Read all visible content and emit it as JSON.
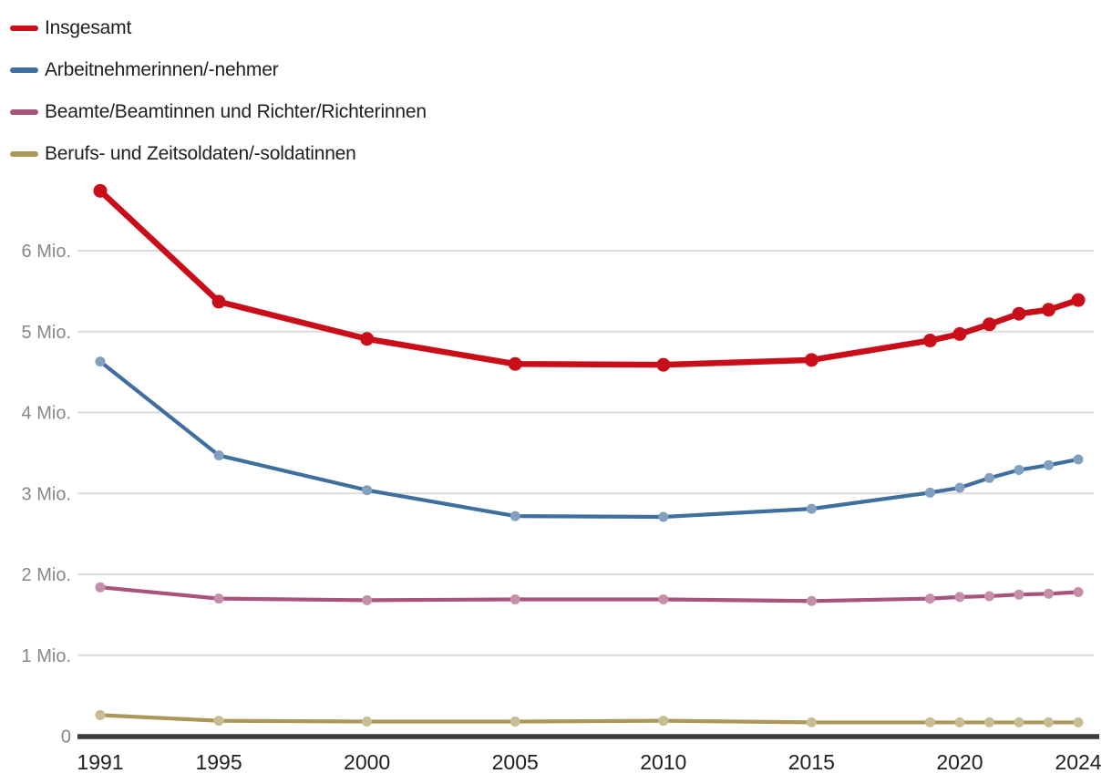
{
  "chart_data": {
    "type": "line",
    "x": [
      1991,
      1995,
      2000,
      2005,
      2010,
      2015,
      2019,
      2020,
      2021,
      2022,
      2023,
      2024
    ],
    "series": [
      {
        "name": "Insgesamt",
        "color": "#c90e1a",
        "emphasized": true,
        "values": [
          6.74,
          5.37,
          4.91,
          4.6,
          4.59,
          4.65,
          4.89,
          4.97,
          5.09,
          5.22,
          5.27,
          5.39
        ]
      },
      {
        "name": "Arbeitnehmerinnen/-nehmer",
        "color": "#3e6f9e",
        "emphasized": false,
        "values": [
          4.63,
          3.47,
          3.04,
          2.72,
          2.71,
          2.81,
          3.01,
          3.07,
          3.19,
          3.29,
          3.35,
          3.42
        ]
      },
      {
        "name": "Beamte/Beamtinnen und Richter/Richterinnen",
        "color": "#a8537a",
        "emphasized": false,
        "values": [
          1.84,
          1.7,
          1.68,
          1.69,
          1.69,
          1.67,
          1.7,
          1.72,
          1.73,
          1.75,
          1.76,
          1.78
        ]
      },
      {
        "name": "Berufs- und Zeitsoldaten/-soldatinnen",
        "color": "#ab9859",
        "emphasized": false,
        "values": [
          0.26,
          0.19,
          0.18,
          0.18,
          0.19,
          0.17,
          0.17,
          0.17,
          0.17,
          0.17,
          0.17,
          0.17
        ]
      }
    ],
    "y_ticks": [
      {
        "value": 6,
        "label": "6 Mio."
      },
      {
        "value": 5,
        "label": "5 Mio."
      },
      {
        "value": 4,
        "label": "4 Mio."
      },
      {
        "value": 3,
        "label": "3 Mio."
      },
      {
        "value": 2,
        "label": "2 Mio."
      },
      {
        "value": 1,
        "label": "1 Mio."
      },
      {
        "value": 0,
        "label": "0"
      }
    ],
    "x_tick_labels": [
      {
        "year": 1991,
        "label": "1991"
      },
      {
        "year": 1995,
        "label": "1995"
      },
      {
        "year": 2000,
        "label": "2000"
      },
      {
        "year": 2005,
        "label": "2005"
      },
      {
        "year": 2010,
        "label": "2010"
      },
      {
        "year": 2015,
        "label": "2015"
      },
      {
        "year": 2020,
        "label": "2020"
      },
      {
        "year": 2024,
        "label": "2024"
      }
    ],
    "ylim": [
      0,
      6.9
    ],
    "xlim": [
      1991,
      2024
    ],
    "unit": "Mio.",
    "grid": true,
    "legend_position": "top-left",
    "colors": {
      "grid_line": "#dcdcdc",
      "axis_line": "#3a3a3a",
      "y_label": "#878787",
      "x_label": "#1f1f1f",
      "background": "#ffffff"
    }
  }
}
